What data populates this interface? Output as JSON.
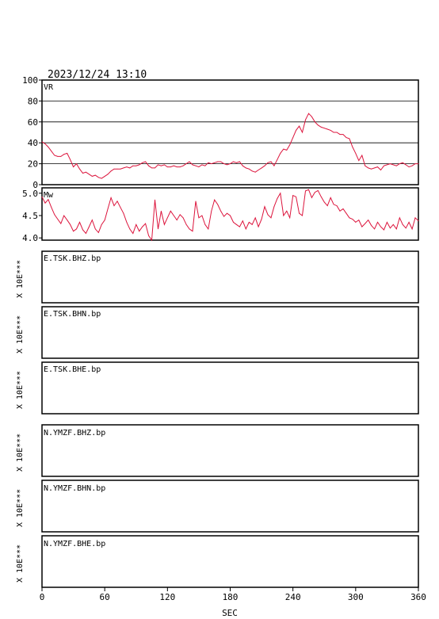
{
  "header": {
    "timestamp": "2023/12/24  13:10"
  },
  "colors": {
    "trace": "#dc143c",
    "frame": "#000000",
    "grid": "#000000"
  },
  "chart_data": [
    {
      "type": "line",
      "panel_label": "VR",
      "xlim": [
        0,
        360
      ],
      "ylim": [
        0,
        100
      ],
      "y_ticks": [
        "0",
        "20",
        "40",
        "60",
        "80",
        "100"
      ],
      "y_tick_values": [
        0,
        20,
        40,
        60,
        80,
        100
      ],
      "grid": "horizontal",
      "x": [
        0,
        3,
        6,
        9,
        12,
        15,
        18,
        21,
        24,
        27,
        30,
        33,
        36,
        39,
        42,
        45,
        48,
        51,
        54,
        57,
        60,
        63,
        66,
        69,
        72,
        75,
        78,
        81,
        84,
        87,
        90,
        93,
        96,
        99,
        102,
        105,
        108,
        111,
        114,
        117,
        120,
        123,
        126,
        129,
        132,
        135,
        138,
        141,
        144,
        147,
        150,
        153,
        156,
        159,
        162,
        165,
        168,
        171,
        174,
        177,
        180,
        183,
        186,
        189,
        192,
        195,
        198,
        201,
        204,
        207,
        210,
        213,
        216,
        219,
        222,
        225,
        228,
        231,
        234,
        237,
        240,
        243,
        246,
        249,
        252,
        255,
        258,
        261,
        264,
        267,
        270,
        273,
        276,
        279,
        282,
        285,
        288,
        291,
        294,
        297,
        300,
        303,
        306,
        309,
        312,
        315,
        318,
        321,
        324,
        327,
        330,
        333,
        336,
        339,
        342,
        345,
        348,
        351,
        354,
        357,
        360
      ],
      "values": [
        41,
        39,
        36,
        32,
        28,
        27,
        27,
        29,
        30,
        24,
        17,
        20,
        15,
        11,
        12,
        10,
        8,
        9,
        7,
        6,
        8,
        10,
        13,
        15,
        15,
        15,
        16,
        17,
        16,
        18,
        18,
        19,
        21,
        22,
        18,
        16,
        16,
        19,
        18,
        19,
        17,
        17,
        18,
        17,
        17,
        18,
        20,
        22,
        19,
        18,
        17,
        19,
        18,
        21,
        20,
        21,
        22,
        22,
        20,
        19,
        20,
        22,
        21,
        22,
        18,
        16,
        15,
        13,
        12,
        14,
        16,
        18,
        21,
        22,
        18,
        24,
        30,
        34,
        33,
        38,
        45,
        52,
        56,
        50,
        62,
        68,
        65,
        60,
        57,
        55,
        54,
        53,
        52,
        50,
        50,
        48,
        48,
        45,
        44,
        36,
        30,
        23,
        28,
        18,
        16,
        15,
        16,
        17,
        14,
        18,
        19,
        20,
        19,
        18,
        20,
        21,
        19,
        17,
        18,
        20,
        20
      ]
    },
    {
      "type": "line",
      "panel_label": "Mw",
      "xlim": [
        0,
        360
      ],
      "ylim": [
        3.95,
        5.12
      ],
      "y_ticks": [
        "4.0",
        "4.5",
        "5.0"
      ],
      "y_tick_values": [
        4.0,
        4.5,
        5.0
      ],
      "grid": "none",
      "x": [
        0,
        3,
        6,
        9,
        12,
        15,
        18,
        21,
        24,
        27,
        30,
        33,
        36,
        39,
        42,
        45,
        48,
        51,
        54,
        57,
        60,
        63,
        66,
        69,
        72,
        75,
        78,
        81,
        84,
        87,
        90,
        93,
        96,
        99,
        102,
        105,
        108,
        111,
        114,
        117,
        120,
        123,
        126,
        129,
        132,
        135,
        138,
        141,
        144,
        147,
        150,
        153,
        156,
        159,
        162,
        165,
        168,
        171,
        174,
        177,
        180,
        183,
        186,
        189,
        192,
        195,
        198,
        201,
        204,
        207,
        210,
        213,
        216,
        219,
        222,
        225,
        228,
        231,
        234,
        237,
        240,
        243,
        246,
        249,
        252,
        255,
        258,
        261,
        264,
        267,
        270,
        273,
        276,
        279,
        282,
        285,
        288,
        291,
        294,
        297,
        300,
        303,
        306,
        309,
        312,
        315,
        318,
        321,
        324,
        327,
        330,
        333,
        336,
        339,
        342,
        345,
        348,
        351,
        354,
        357,
        360
      ],
      "values": [
        4.92,
        4.78,
        4.86,
        4.68,
        4.52,
        4.42,
        4.32,
        4.5,
        4.4,
        4.3,
        4.15,
        4.2,
        4.35,
        4.18,
        4.1,
        4.25,
        4.4,
        4.2,
        4.12,
        4.3,
        4.4,
        4.65,
        4.9,
        4.72,
        4.82,
        4.68,
        4.55,
        4.35,
        4.2,
        4.1,
        4.3,
        4.15,
        4.25,
        4.32,
        4.05,
        3.95,
        4.85,
        4.2,
        4.6,
        4.3,
        4.45,
        4.6,
        4.5,
        4.4,
        4.52,
        4.45,
        4.3,
        4.2,
        4.15,
        4.82,
        4.45,
        4.5,
        4.3,
        4.2,
        4.6,
        4.85,
        4.75,
        4.6,
        4.48,
        4.55,
        4.5,
        4.35,
        4.3,
        4.25,
        4.38,
        4.2,
        4.35,
        4.3,
        4.45,
        4.25,
        4.42,
        4.7,
        4.52,
        4.45,
        4.7,
        4.88,
        5.0,
        4.5,
        4.6,
        4.45,
        4.95,
        4.92,
        4.55,
        4.5,
        5.05,
        5.08,
        4.9,
        5.02,
        5.06,
        4.92,
        4.8,
        4.72,
        4.9,
        4.75,
        4.72,
        4.6,
        4.65,
        4.55,
        4.45,
        4.42,
        4.35,
        4.4,
        4.25,
        4.32,
        4.4,
        4.28,
        4.2,
        4.35,
        4.25,
        4.18,
        4.35,
        4.22,
        4.3,
        4.2,
        4.45,
        4.3,
        4.22,
        4.35,
        4.2,
        4.45,
        4.38
      ]
    }
  ],
  "waveform_panels": [
    {
      "label": "E.TSK.BHZ.bp",
      "scale": "X 10E***"
    },
    {
      "label": "E.TSK.BHN.bp",
      "scale": "X 10E***"
    },
    {
      "label": "E.TSK.BHE.bp",
      "scale": "X 10E***"
    },
    {
      "label": "N.YMZF.BHZ.bp",
      "scale": "X 10E***"
    },
    {
      "label": "N.YMZF.BHN.bp",
      "scale": "X 10E***"
    },
    {
      "label": "N.YMZF.BHE.bp",
      "scale": "X 10E***"
    }
  ],
  "x_axis": {
    "label": "SEC",
    "ticks": [
      "0",
      "60",
      "120",
      "180",
      "240",
      "300",
      "360"
    ],
    "tick_values": [
      0,
      60,
      120,
      180,
      240,
      300,
      360
    ]
  }
}
